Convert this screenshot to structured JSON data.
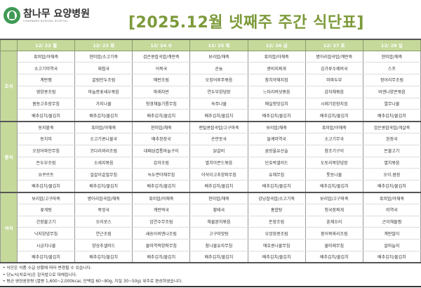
{
  "header": {
    "hospital_name": "참나무 요양병원",
    "hospital_name_en": "CHAMNAMU NURSING HOSPITAL",
    "title": "[2025.12월 넷째주 주간 식단표]"
  },
  "days": [
    "12/ 22 월",
    "12/ 23 화",
    "12/ 24 수",
    "12/ 25 목",
    "12/ 26 금",
    "12/ 27 토",
    "12/ 28 일"
  ],
  "meals": [
    {
      "label": "조식",
      "rows": [
        [
          "흑미밥/야채죽",
          "현미밥/소고기죽",
          "검은콩잡곡밥/계란죽",
          "보리밥/채죽",
          "흑미밥/야채죽",
          "병아리잡곡밥/계란죽",
          "현미밥/채죽"
        ],
        [
          "소고기미역국",
          "재첩국",
          "어묵국",
          "순늉",
          "콩비지찌개",
          "김가루수제비국",
          "스프"
        ],
        [
          "계란찜",
          "굴림만두조림",
          "메란조림",
          "오징어루주볶음",
          "참치야채지짐",
          "마파두부",
          "정어리무조림"
        ],
        [
          "영양콩조림",
          "마늘쫑꽃새우볶음",
          "파래자반",
          "연두부양념장",
          "느타리버섯볶음",
          "감자채볶음",
          "비엔나양콘볶음"
        ],
        [
          "봄동고추장무침",
          "가지나물",
          "청경채들기름무침",
          "숙주나물",
          "매실청맛김치",
          "시래기된장지짐",
          "열무나물"
        ],
        [
          "배추김치/물김치",
          "배추김치/물김치",
          "배추김치/물김치",
          "배추김치/물김치",
          "배추김치/물김치",
          "배추김치/물김치",
          "배추김치/물김치"
        ]
      ]
    },
    {
      "label": "중식",
      "rows": [
        [
          "동지팥죽",
          "흑미밥/야채죽",
          "현미밥/채죽",
          "렌틸콩잡곡밥/고구마죽",
          "보리밥/채죽",
          "흑미밥/야채죽",
          "검은콩잡곡밥/게살죽"
        ],
        [
          "동치미",
          "소고기콩나물국",
          "배추된장국",
          "손만둣국",
          "들깨미역국",
          "소고기무국",
          "된장국"
        ],
        [
          "오징어파인무침",
          "코다리꽈리조림",
          "대패삼겹통마늘구이",
          "닭갈비",
          "숨방울유산슬",
          "참조기구이",
          "돈불고기"
        ],
        [
          "돈두부조림",
          "소세지볶음",
          "감자조림",
          "멸치아몬드볶음",
          "단호박샐러드",
          "도토리묵양념장",
          "멸치볶음"
        ],
        [
          "요쿠르트",
          "얼갈이겉절무침",
          "녹두면야채무침",
          "아삭이고추양파무침",
          "유채무침",
          "톳등나물",
          "오이.쌈장"
        ],
        [
          "배추김치/물김치",
          "배추김치/물김치",
          "배추김치/물김치",
          "배추김치/물김치",
          "배추김치/물김치",
          "배추김치/물김치",
          "배추김치/물김치"
        ]
      ]
    },
    {
      "label": "석식",
      "rows": [
        [
          "보리밥/고구마죽",
          "병아리잡곡밥/채죽",
          "흑미밥/야채죽",
          "현미밥/채죽",
          "강낭잡곡밥/소고기죽",
          "보리밥/고구마죽",
          "흑미밥/야채죽"
        ],
        [
          "꽃게탕",
          "북엇국",
          "계란떡국",
          "황태국",
          "홍합탕",
          "청국장찌개",
          "미역국"
        ],
        [
          "간장불고기",
          "오리로스",
          "임연수무조림",
          "해물완자볶음",
          "돈장조림",
          "훈제오리",
          "곤이해물찜"
        ],
        [
          "낙지양념무침",
          "연근조림",
          "새송이비엔나조림",
          "고구마맛탕",
          "우엉땅콩조림",
          "붕어묵꽈리조림",
          "계란말이"
        ],
        [
          "시금치나물",
          "양상추샐러드",
          "물미역적양파무침",
          "참나물유자무침",
          "애호콩나물무침",
          "물미래무침",
          "알마늘지"
        ],
        [
          "배추김치/물김치",
          "배추김치/물김치",
          "배추김치/물김치",
          "배추김치/물김치",
          "배추김치/물김치",
          "배추김치/물김치",
          "배추김치/물김치"
        ]
      ]
    }
  ],
  "notes": [
    "• 식단은 식품 수급 상황에 따라 변경될 수 있습니다.",
    "• 당뇨식(치료식)은 잡곡밥으로 대체됩니다.",
    "• 평균 영양권장량 (열량 1,600~2,000kcal, 단백질 60~80g, 지질 30~50g) 위주로 편성하였습니다."
  ],
  "colors": {
    "accent": "#c5d99b",
    "title": "#7c9a3a",
    "logo": "#3f9a55"
  }
}
